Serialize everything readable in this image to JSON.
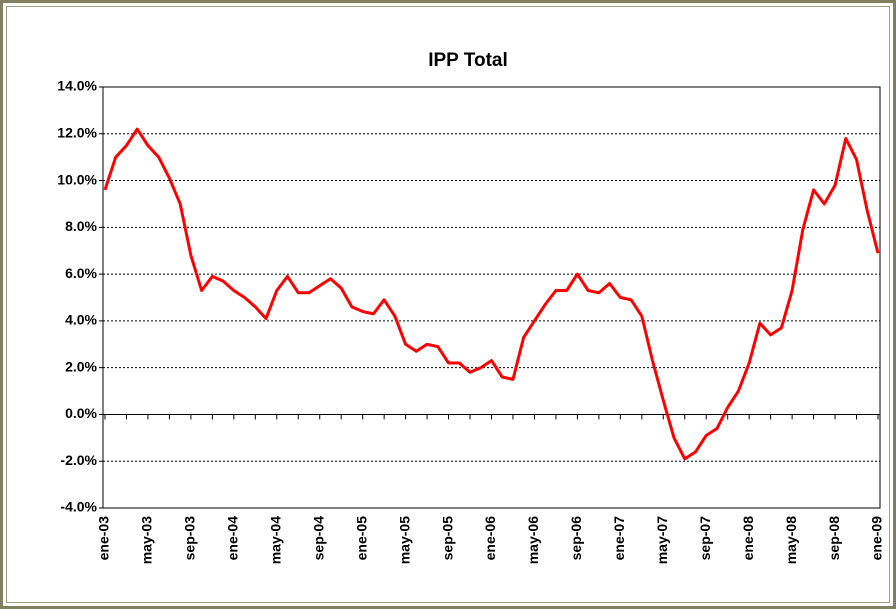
{
  "chart_data": {
    "type": "line",
    "title": "IPP Total",
    "categories": [
      "ene-03",
      null,
      null,
      null,
      "may-03",
      null,
      null,
      null,
      "sep-03",
      null,
      null,
      null,
      "ene-04",
      null,
      null,
      null,
      "may-04",
      null,
      null,
      null,
      "sep-04",
      null,
      null,
      null,
      "ene-05",
      null,
      null,
      null,
      "may-05",
      null,
      null,
      null,
      "sep-05",
      null,
      null,
      null,
      "ene-06",
      null,
      null,
      null,
      "may-06",
      null,
      null,
      null,
      "sep-06",
      null,
      null,
      null,
      "ene-07",
      null,
      null,
      null,
      "may-07",
      null,
      null,
      null,
      "sep-07",
      null,
      null,
      null,
      "ene-08",
      null,
      null,
      null,
      "may-08",
      null,
      null,
      null,
      "sep-08",
      null,
      null,
      null,
      "ene-09"
    ],
    "series": [
      {
        "name": "IPP Total",
        "color": "#ff0000",
        "values": [
          9.6,
          11.0,
          11.5,
          12.2,
          11.5,
          11.0,
          10.1,
          9.0,
          6.8,
          5.3,
          5.9,
          5.7,
          5.3,
          5.0,
          4.6,
          4.1,
          5.3,
          5.9,
          5.2,
          5.2,
          5.5,
          5.8,
          5.4,
          4.6,
          4.4,
          4.3,
          4.9,
          4.2,
          3.0,
          2.7,
          3.0,
          2.9,
          2.2,
          2.2,
          1.8,
          2.0,
          2.3,
          1.6,
          1.5,
          3.3,
          4.0,
          4.7,
          5.3,
          5.3,
          6.0,
          5.3,
          5.2,
          5.6,
          5.0,
          4.9,
          4.2,
          2.3,
          0.6,
          -1.0,
          -1.9,
          -1.6,
          -0.9,
          -0.6,
          0.3,
          1.0,
          2.2,
          3.9,
          3.4,
          3.7,
          5.3,
          7.9,
          9.6,
          9.0,
          9.8,
          11.8,
          10.9,
          8.7,
          6.9
        ]
      }
    ],
    "ylim": [
      -4,
      14
    ],
    "yticks": [
      {
        "value": -4,
        "label": "-4.0%"
      },
      {
        "value": -2,
        "label": "-2.0%"
      },
      {
        "value": 0,
        "label": "0.0%"
      },
      {
        "value": 2,
        "label": "2.0%"
      },
      {
        "value": 4,
        "label": "4.0%"
      },
      {
        "value": 6,
        "label": "6.0%"
      },
      {
        "value": 8,
        "label": "8.0%"
      },
      {
        "value": 10,
        "label": "10.0%"
      },
      {
        "value": 12,
        "label": "12.0%"
      },
      {
        "value": 14,
        "label": "14.0%"
      }
    ],
    "grid": true
  }
}
